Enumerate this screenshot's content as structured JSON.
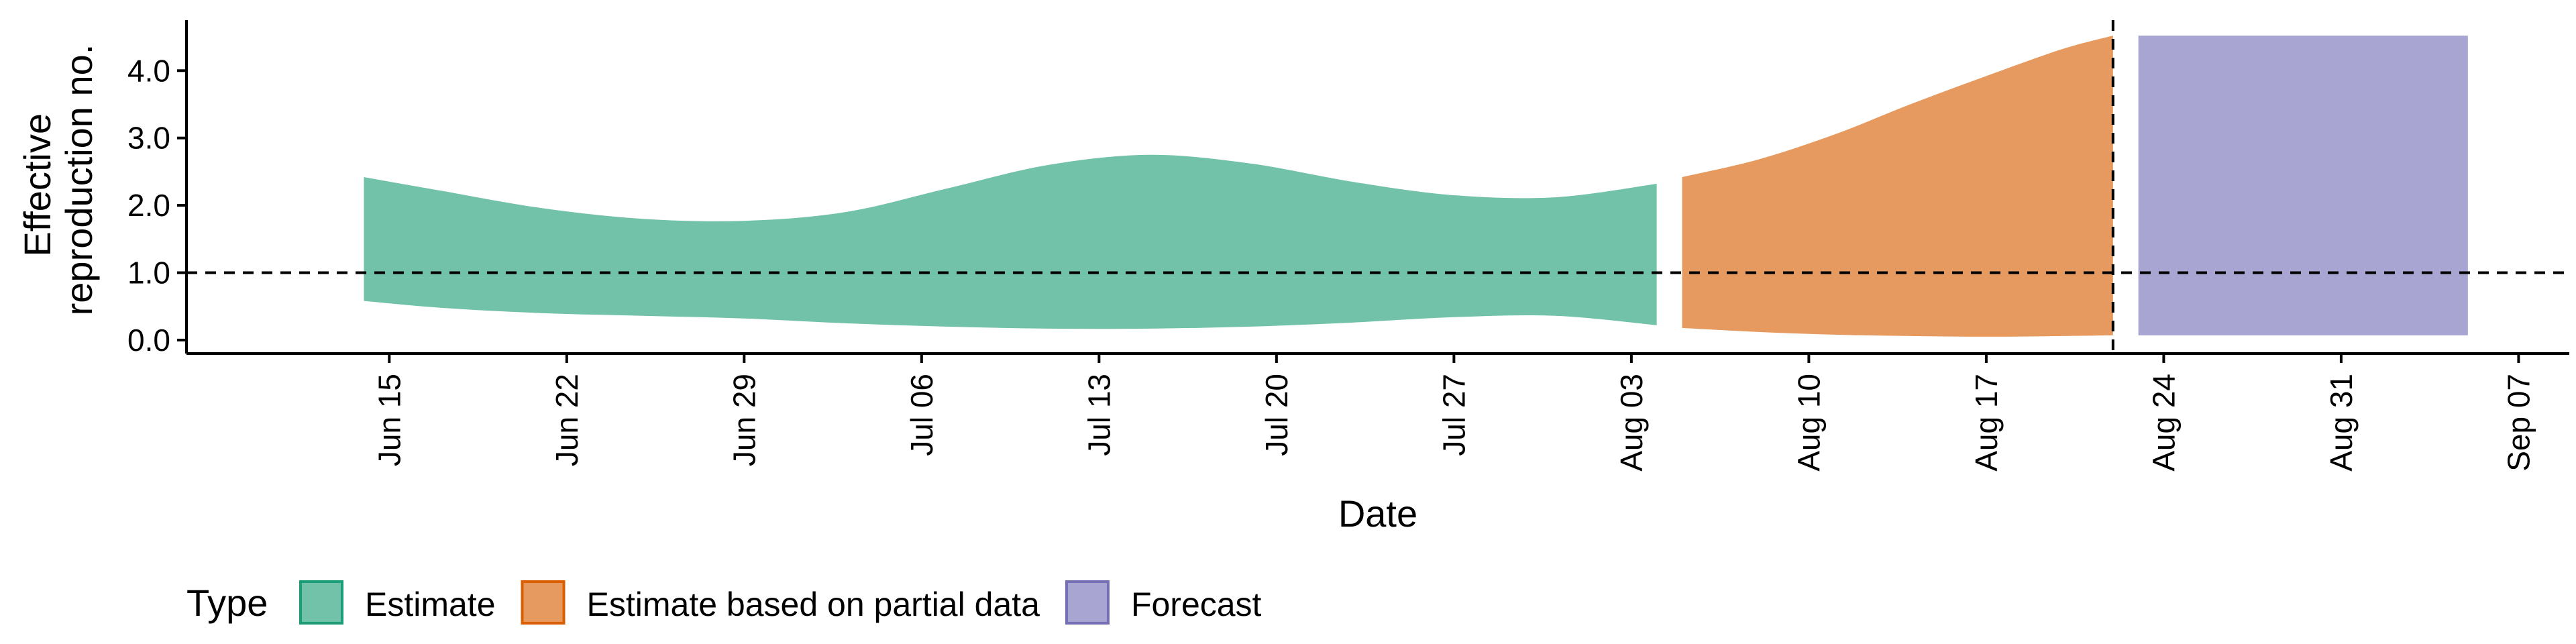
{
  "chart_data": {
    "type": "area",
    "xlabel": "Date",
    "ylabel": [
      "Effective",
      "reproduction no."
    ],
    "ylim": [
      -0.2,
      4.75
    ],
    "xlim": [
      "2021-06-07",
      "2021-09-09"
    ],
    "x_ticks": [
      "2021-06-15",
      "2021-06-22",
      "2021-06-29",
      "2021-07-06",
      "2021-07-13",
      "2021-07-20",
      "2021-07-27",
      "2021-08-03",
      "2021-08-10",
      "2021-08-17",
      "2021-08-24",
      "2021-08-31",
      "2021-09-07"
    ],
    "x_tick_labels": [
      "Jun 15",
      "Jun 22",
      "Jun 29",
      "Jul 06",
      "Jul 13",
      "Jul 20",
      "Jul 27",
      "Aug 03",
      "Aug 10",
      "Aug 17",
      "Aug 24",
      "Aug 31",
      "Sep 07"
    ],
    "y_ticks": [
      0,
      1,
      2,
      3,
      4
    ],
    "y_tick_labels": [
      "0.0",
      "1.0",
      "2.0",
      "3.0",
      "4.0"
    ],
    "reference_line_y": 1.0,
    "reference_line_x": "2021-08-22",
    "legend_title": "Type",
    "legend_position": "bottom",
    "series": [
      {
        "name": "Estimate",
        "color": "#1b9e77",
        "fill": "#72c1a9",
        "x": [
          "2021-06-14",
          "2021-06-17",
          "2021-06-21",
          "2021-06-25",
          "2021-06-29",
          "2021-07-03",
          "2021-07-07",
          "2021-07-11",
          "2021-07-15",
          "2021-07-19",
          "2021-07-23",
          "2021-07-27",
          "2021-07-31",
          "2021-08-04"
        ],
        "upper": [
          2.42,
          2.22,
          1.96,
          1.8,
          1.77,
          1.9,
          2.25,
          2.6,
          2.75,
          2.62,
          2.35,
          2.15,
          2.12,
          2.32
        ],
        "lower": [
          0.58,
          0.48,
          0.4,
          0.36,
          0.32,
          0.25,
          0.2,
          0.17,
          0.17,
          0.2,
          0.26,
          0.34,
          0.36,
          0.22
        ]
      },
      {
        "name": "Estimate based on partial data",
        "color": "#d95f02",
        "fill": "#e69a5f",
        "x": [
          "2021-08-05",
          "2021-08-08",
          "2021-08-11",
          "2021-08-14",
          "2021-08-17",
          "2021-08-20",
          "2021-08-22"
        ],
        "upper": [
          2.42,
          2.68,
          3.05,
          3.5,
          3.92,
          4.32,
          4.52
        ],
        "lower": [
          0.18,
          0.12,
          0.08,
          0.06,
          0.05,
          0.06,
          0.07
        ]
      },
      {
        "name": "Forecast",
        "color": "#7570b3",
        "fill": "#a8a5d2",
        "x": [
          "2021-08-23",
          "2021-09-05"
        ],
        "upper": [
          4.52,
          4.52
        ],
        "lower": [
          0.07,
          0.07
        ]
      }
    ]
  }
}
